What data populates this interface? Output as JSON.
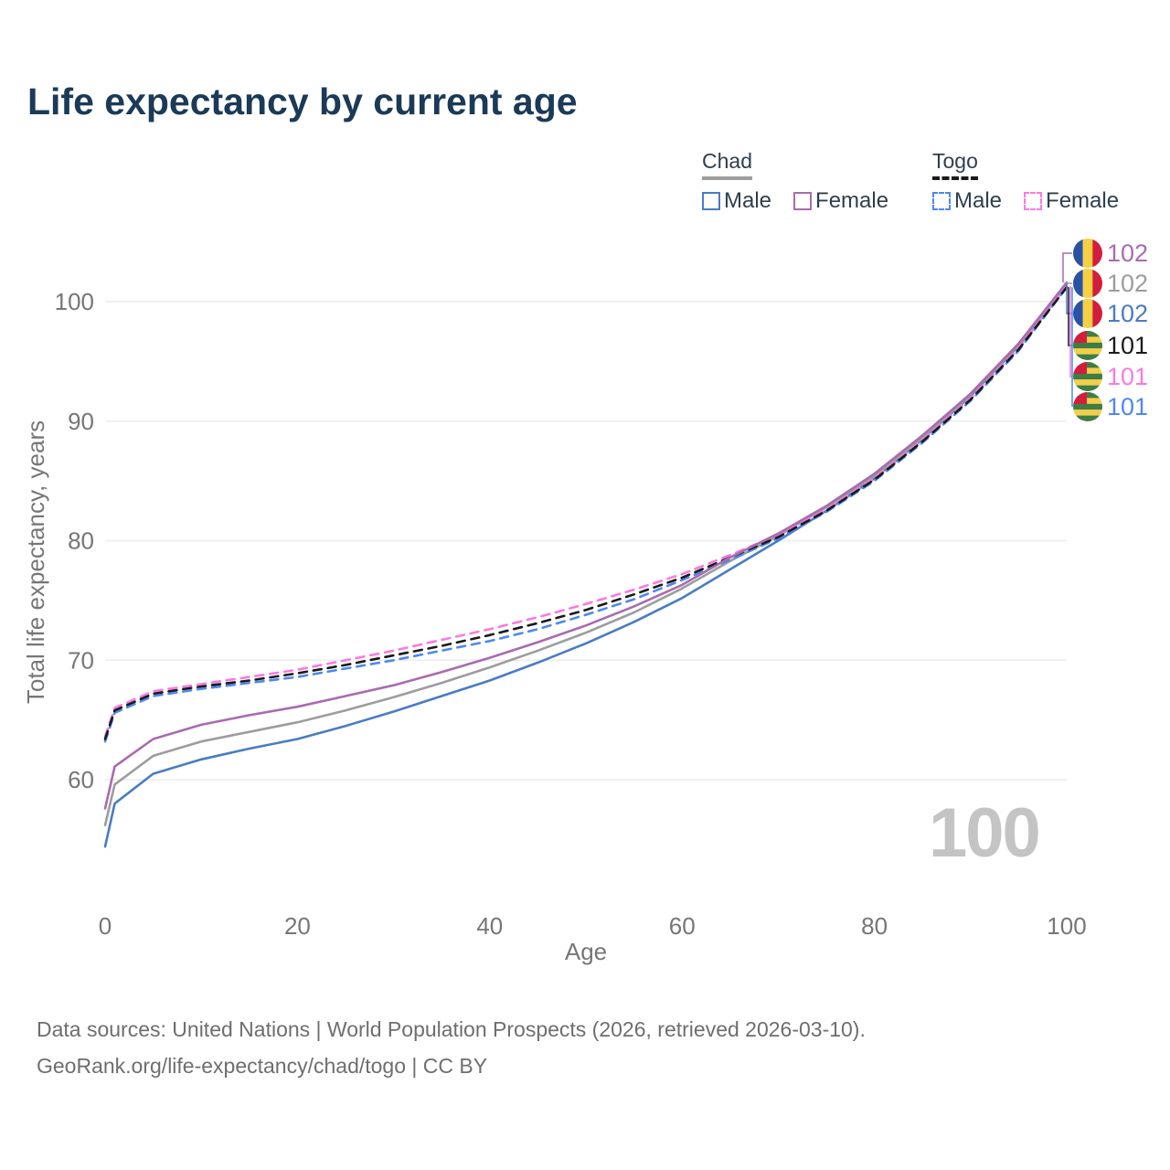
{
  "title": "Life expectancy by current age",
  "watermark": "100",
  "legend": {
    "groups": [
      {
        "label": "Chad",
        "items": [
          {
            "label": "Male",
            "color": "#4a7cc2",
            "style": "solid"
          },
          {
            "label": "Female",
            "color": "#a96bb0",
            "style": "solid"
          }
        ]
      },
      {
        "label": "Togo",
        "items": [
          {
            "label": "Male",
            "color": "#4d88f0",
            "style": "dashed"
          },
          {
            "label": "Female",
            "color": "#fb79e0",
            "style": "dashed"
          }
        ]
      }
    ]
  },
  "footer": {
    "line1": "Data sources: United Nations | World Population Prospects (2026, retrieved 2026-03-10).",
    "line2": "GeoRank.org/life-expectancy/chad/togo | CC BY"
  },
  "chart_data": {
    "type": "line",
    "title": "Life expectancy by current age",
    "xlabel": "Age",
    "ylabel": "Total life expectancy, years",
    "xlim": [
      0,
      100
    ],
    "ylim": [
      54,
      103
    ],
    "x_ticks": [
      0,
      20,
      40,
      60,
      80,
      100
    ],
    "y_ticks": [
      60,
      70,
      80,
      90,
      100
    ],
    "grid": "horizontal",
    "legend_position": "top-right",
    "x": [
      0,
      1,
      5,
      10,
      15,
      20,
      25,
      30,
      35,
      40,
      45,
      50,
      55,
      60,
      65,
      70,
      75,
      80,
      85,
      90,
      95,
      100
    ],
    "series": [
      {
        "id": "chad_male",
        "name": "Chad Male",
        "country": "Chad",
        "sex": "Male",
        "color": "#4a7cc2",
        "dash": "solid",
        "values": [
          54.4,
          58.0,
          60.5,
          61.7,
          62.6,
          63.4,
          64.5,
          65.7,
          67.0,
          68.3,
          69.8,
          71.4,
          73.2,
          75.2,
          77.6,
          80.0,
          82.5,
          85.2,
          88.5,
          92.1,
          96.3,
          101.5
        ]
      },
      {
        "id": "chad_total",
        "name": "Chad Total",
        "country": "Chad",
        "sex": "Both",
        "color": "#9d9d9d",
        "dash": "solid",
        "values": [
          56.2,
          59.6,
          62.0,
          63.2,
          64.0,
          64.8,
          65.8,
          66.9,
          68.1,
          69.4,
          70.8,
          72.3,
          74.0,
          76.0,
          78.3,
          80.4,
          82.8,
          85.4,
          88.6,
          92.2,
          96.4,
          101.5
        ]
      },
      {
        "id": "togo_male",
        "name": "Togo Male",
        "country": "Togo",
        "sex": "Male",
        "color": "#4d88f0",
        "dash": "dashed",
        "values": [
          63.2,
          65.6,
          67.0,
          67.6,
          68.1,
          68.6,
          69.3,
          70.0,
          70.8,
          71.6,
          72.6,
          73.8,
          75.1,
          76.7,
          78.4,
          80.2,
          82.4,
          85.0,
          88.2,
          91.7,
          95.9,
          101.2
        ]
      },
      {
        "id": "togo_female",
        "name": "Togo Female",
        "country": "Togo",
        "sex": "Female",
        "color": "#fb79e0",
        "dash": "dashed",
        "values": [
          63.6,
          66.0,
          67.4,
          68.0,
          68.6,
          69.2,
          70.0,
          70.8,
          71.7,
          72.6,
          73.6,
          74.7,
          75.9,
          77.2,
          78.8,
          80.5,
          82.6,
          85.2,
          88.4,
          91.9,
          96.1,
          101.3
        ]
      },
      {
        "id": "togo_total",
        "name": "Togo Total",
        "country": "Togo",
        "sex": "Both",
        "color": "#1a1a1a",
        "dash": "dashed",
        "values": [
          63.4,
          65.8,
          67.2,
          67.8,
          68.3,
          68.9,
          69.6,
          70.4,
          71.2,
          72.1,
          73.1,
          74.2,
          75.5,
          76.9,
          78.6,
          80.3,
          82.5,
          85.1,
          88.3,
          91.8,
          96.0,
          101.2
        ]
      },
      {
        "id": "chad_female",
        "name": "Chad Female",
        "country": "Chad",
        "sex": "Female",
        "color": "#a96bb0",
        "dash": "solid",
        "values": [
          57.6,
          61.1,
          63.4,
          64.6,
          65.4,
          66.1,
          67.0,
          67.9,
          69.0,
          70.2,
          71.5,
          72.9,
          74.5,
          76.3,
          78.6,
          80.6,
          82.9,
          85.6,
          88.8,
          92.3,
          96.5,
          101.6
        ]
      }
    ],
    "end_labels": [
      {
        "series": "chad_female",
        "flag": "chad",
        "text": "102",
        "color": "#a96bb0"
      },
      {
        "series": "chad_total",
        "flag": "chad",
        "text": "102",
        "color": "#9d9d9d"
      },
      {
        "series": "chad_male",
        "flag": "chad",
        "text": "102",
        "color": "#4a7cc2"
      },
      {
        "series": "togo_total",
        "flag": "togo",
        "text": "101",
        "color": "#1a1a1a"
      },
      {
        "series": "togo_female",
        "flag": "togo",
        "text": "101",
        "color": "#fb79e0"
      },
      {
        "series": "togo_male",
        "flag": "togo",
        "text": "101",
        "color": "#4d88f0"
      }
    ],
    "flags": {
      "chad": {
        "blue": "#2b51a5",
        "yellow": "#f6d043",
        "red": "#d21d3c"
      },
      "togo": {
        "green": "#3f7d44",
        "yellow": "#f2cf4a",
        "red": "#d21d3c",
        "star": "#ffffff"
      }
    }
  }
}
